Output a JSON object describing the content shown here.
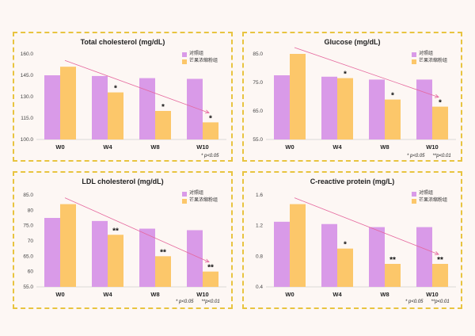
{
  "colors": {
    "control": "#d99ae8",
    "mango": "#fcc76a",
    "arrow": "#e5679d",
    "frame": "#e8c440"
  },
  "legend": {
    "control": "对照组",
    "mango": "芒果浓缩粉组"
  },
  "chart_data": [
    {
      "type": "bar",
      "title": "Total cholesterol (mg/dL)",
      "categories": [
        "W0",
        "W4",
        "W8",
        "W10"
      ],
      "series": [
        {
          "name": "对照组",
          "values": [
            145.0,
            144.5,
            143.0,
            142.5
          ]
        },
        {
          "name": "芒果浓缩粉组",
          "values": [
            151.0,
            133.0,
            120.0,
            112.0
          ]
        }
      ],
      "ylim": [
        100,
        160
      ],
      "yticks": [
        "100.0",
        "115.0",
        "130.0",
        "145.0",
        "160.0"
      ],
      "significance": [
        "",
        "*",
        "*",
        "*"
      ],
      "note": [
        "* p<0.05"
      ]
    },
    {
      "type": "bar",
      "title": "Glucose (mg/dL)",
      "categories": [
        "W0",
        "W4",
        "W8",
        "W10"
      ],
      "series": [
        {
          "name": "对照组",
          "values": [
            77.5,
            77.0,
            76.0,
            76.0
          ]
        },
        {
          "name": "芒果浓缩粉组",
          "values": [
            85.0,
            76.5,
            69.0,
            66.5
          ]
        }
      ],
      "ylim": [
        55,
        85
      ],
      "yticks": [
        "55.0",
        "65.0",
        "75.0",
        "85.0"
      ],
      "significance": [
        "",
        "*",
        "*",
        "*"
      ],
      "note": [
        "* p<0.05",
        "**p<0.01"
      ]
    },
    {
      "type": "bar",
      "title": "LDL cholesterol (mg/dL)",
      "categories": [
        "W0",
        "W4",
        "W8",
        "W10"
      ],
      "series": [
        {
          "name": "对照组",
          "values": [
            77.5,
            76.5,
            74.0,
            73.5
          ]
        },
        {
          "name": "芒果浓缩粉组",
          "values": [
            82.0,
            72.0,
            65.0,
            60.0
          ]
        }
      ],
      "ylim": [
        55,
        85
      ],
      "yticks": [
        "55.0",
        "60",
        "65.0",
        "70",
        "75.0",
        "80",
        "85.0"
      ],
      "significance": [
        "",
        "**",
        "**",
        "**"
      ],
      "note": [
        "* p<0.05",
        "**p<0.01"
      ]
    },
    {
      "type": "bar",
      "title": "C-reactive protein (mg/L)",
      "categories": [
        "W0",
        "W4",
        "W8",
        "W10"
      ],
      "series": [
        {
          "name": "对照组",
          "values": [
            1.25,
            1.22,
            1.18,
            1.18
          ]
        },
        {
          "name": "芒果浓缩粉组",
          "values": [
            1.48,
            0.9,
            0.7,
            0.7
          ]
        }
      ],
      "ylim": [
        0.4,
        1.6
      ],
      "yticks": [
        "0.4",
        "0.8",
        "1.2",
        "1.6"
      ],
      "significance": [
        "",
        "*",
        "**",
        "**"
      ],
      "note": [
        "* p<0.05",
        "**p<0.01"
      ]
    }
  ]
}
